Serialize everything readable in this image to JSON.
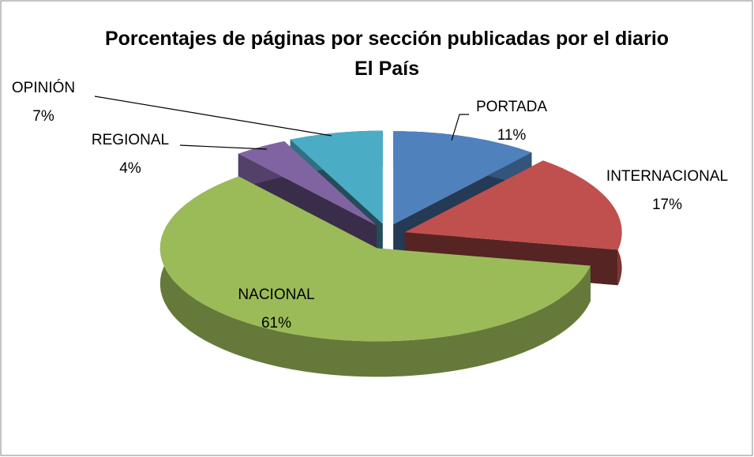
{
  "chart_data": {
    "type": "pie3d",
    "title": "Porcentajes de páginas por sección publicadas por el diario El País",
    "categories": [
      "PORTADA",
      "INTERNACIONAL",
      "NACIONAL",
      "REGIONAL",
      "OPINIÓN"
    ],
    "values": [
      11,
      17,
      61,
      4,
      7
    ],
    "value_labels": [
      "11%",
      "17%",
      "61%",
      "4%",
      "7%"
    ],
    "colors": [
      "#4f81bd",
      "#c0504d",
      "#9bbb59",
      "#8064a2",
      "#4bacc6"
    ]
  }
}
